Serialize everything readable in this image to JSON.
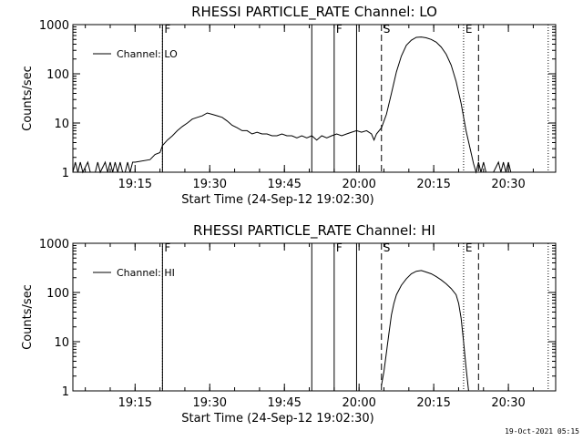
{
  "footer": "19-Oct-2021 05:15",
  "chart_data": [
    {
      "type": "line",
      "title": "RHESSI PARTICLE_RATE Channel: LO",
      "xlabel": "Start Time (24-Sep-12 19:02:30)",
      "ylabel": "Counts/sec",
      "yscale": "log",
      "ylim": [
        1,
        1000
      ],
      "xlim": [
        "19:02:30",
        "20:39:30"
      ],
      "x_ticks": [
        "19:15",
        "19:30",
        "19:45",
        "20:00",
        "20:15",
        "20:30"
      ],
      "y_ticks": [
        "1",
        "10",
        "100",
        "1000"
      ],
      "legend": {
        "position": "top-left",
        "entries": [
          "Channel: LO"
        ]
      },
      "markers": [
        {
          "time": "19:20:30",
          "label": "F",
          "style": "dotted"
        },
        {
          "time": "19:20:30",
          "label": "",
          "style": "solid"
        },
        {
          "time": "19:50:30",
          "label": "",
          "style": "solid"
        },
        {
          "time": "19:55:00",
          "label": "F",
          "style": "solid"
        },
        {
          "time": "19:59:30",
          "label": "",
          "style": "solid"
        },
        {
          "time": "20:04:30",
          "label": "S",
          "style": "dashed"
        },
        {
          "time": "20:21:00",
          "label": "E",
          "style": "dotted"
        },
        {
          "time": "20:24:00",
          "label": "",
          "style": "dashed"
        },
        {
          "time": "20:38:00",
          "label": "",
          "style": "dotted"
        }
      ],
      "series": [
        {
          "name": "Channel: LO",
          "points": [
            [
              "19:02:30",
              1
            ],
            [
              "19:03:00",
              1.6
            ],
            [
              "19:03:30",
              1
            ],
            [
              "19:04:00",
              1.6
            ],
            [
              "19:04:30",
              1
            ],
            [
              "19:05:30",
              1.6
            ],
            [
              "19:06:00",
              1
            ],
            [
              "19:07:00",
              1
            ],
            [
              "19:07:30",
              1.6
            ],
            [
              "19:08:00",
              1
            ],
            [
              "19:09:00",
              1.6
            ],
            [
              "19:09:30",
              1
            ],
            [
              "19:10:00",
              1.6
            ],
            [
              "19:10:30",
              1
            ],
            [
              "19:11:00",
              1.6
            ],
            [
              "19:11:30",
              1
            ],
            [
              "19:12:00",
              1.6
            ],
            [
              "19:12:30",
              1
            ],
            [
              "19:13:00",
              1
            ],
            [
              "19:13:30",
              1.6
            ],
            [
              "19:14:00",
              1
            ],
            [
              "19:14:30",
              1.6
            ],
            [
              "19:15:00",
              1.6
            ],
            [
              "19:18:00",
              1.8
            ],
            [
              "19:19:00",
              2.3
            ],
            [
              "19:20:00",
              2.5
            ],
            [
              "19:20:30",
              3.5
            ],
            [
              "19:21:30",
              4.5
            ],
            [
              "19:22:30",
              5.5
            ],
            [
              "19:23:30",
              7
            ],
            [
              "19:24:30",
              8.5
            ],
            [
              "19:25:30",
              10
            ],
            [
              "19:26:30",
              12
            ],
            [
              "19:27:30",
              13
            ],
            [
              "19:28:30",
              14
            ],
            [
              "19:29:30",
              16
            ],
            [
              "19:30:30",
              15
            ],
            [
              "19:31:30",
              14
            ],
            [
              "19:32:30",
              13
            ],
            [
              "19:33:30",
              11
            ],
            [
              "19:34:30",
              9
            ],
            [
              "19:35:30",
              8
            ],
            [
              "19:36:30",
              7
            ],
            [
              "19:37:30",
              7
            ],
            [
              "19:38:30",
              6
            ],
            [
              "19:39:30",
              6.5
            ],
            [
              "19:40:30",
              6
            ],
            [
              "19:41:30",
              6
            ],
            [
              "19:42:30",
              5.5
            ],
            [
              "19:43:30",
              5.5
            ],
            [
              "19:44:30",
              6
            ],
            [
              "19:45:30",
              5.5
            ],
            [
              "19:46:30",
              5.5
            ],
            [
              "19:47:30",
              5
            ],
            [
              "19:48:30",
              5.5
            ],
            [
              "19:49:30",
              5
            ],
            [
              "19:50:30",
              5.5
            ],
            [
              "19:51:30",
              4.5
            ],
            [
              "19:52:30",
              5.5
            ],
            [
              "19:53:30",
              5
            ],
            [
              "19:54:30",
              5.5
            ],
            [
              "19:55:30",
              6
            ],
            [
              "19:56:30",
              5.5
            ],
            [
              "19:57:30",
              6
            ],
            [
              "19:58:30",
              6.5
            ],
            [
              "19:59:30",
              7
            ],
            [
              "20:00:30",
              6.5
            ],
            [
              "20:01:30",
              7
            ],
            [
              "20:02:30",
              6
            ],
            [
              "20:03:00",
              4.5
            ],
            [
              "20:03:30",
              6
            ],
            [
              "20:04:30",
              8
            ],
            [
              "20:05:30",
              15
            ],
            [
              "20:06:30",
              40
            ],
            [
              "20:07:30",
              110
            ],
            [
              "20:08:30",
              230
            ],
            [
              "20:09:30",
              380
            ],
            [
              "20:10:30",
              480
            ],
            [
              "20:11:30",
              550
            ],
            [
              "20:12:30",
              560
            ],
            [
              "20:13:30",
              540
            ],
            [
              "20:14:30",
              500
            ],
            [
              "20:15:30",
              440
            ],
            [
              "20:16:30",
              350
            ],
            [
              "20:17:30",
              250
            ],
            [
              "20:18:30",
              150
            ],
            [
              "20:19:30",
              70
            ],
            [
              "20:20:30",
              25
            ],
            [
              "20:21:30",
              7
            ],
            [
              "20:22:30",
              2.5
            ],
            [
              "20:23:00",
              1.5
            ],
            [
              "20:23:30",
              1
            ],
            [
              "20:24:00",
              1.6
            ],
            [
              "20:24:30",
              1
            ],
            [
              "20:25:00",
              1.6
            ],
            [
              "20:25:30",
              1
            ],
            [
              "20:27:00",
              1
            ],
            [
              "20:28:00",
              1.6
            ],
            [
              "20:28:30",
              1
            ],
            [
              "20:29:00",
              1.6
            ],
            [
              "20:29:30",
              1
            ],
            [
              "20:30:00",
              1.6
            ],
            [
              "20:30:30",
              1
            ]
          ]
        }
      ]
    },
    {
      "type": "line",
      "title": "RHESSI PARTICLE_RATE Channel: HI",
      "xlabel": "Start Time (24-Sep-12 19:02:30)",
      "ylabel": "Counts/sec",
      "yscale": "log",
      "ylim": [
        1,
        1000
      ],
      "xlim": [
        "19:02:30",
        "20:39:30"
      ],
      "x_ticks": [
        "19:15",
        "19:30",
        "19:45",
        "20:00",
        "20:15",
        "20:30"
      ],
      "y_ticks": [
        "1",
        "10",
        "100",
        "1000"
      ],
      "legend": {
        "position": "top-left",
        "entries": [
          "Channel: HI"
        ]
      },
      "markers": [
        {
          "time": "19:20:30",
          "label": "F",
          "style": "dotted"
        },
        {
          "time": "19:20:30",
          "label": "",
          "style": "solid"
        },
        {
          "time": "19:50:30",
          "label": "",
          "style": "solid"
        },
        {
          "time": "19:55:00",
          "label": "F",
          "style": "solid"
        },
        {
          "time": "19:59:30",
          "label": "",
          "style": "solid"
        },
        {
          "time": "20:04:30",
          "label": "S",
          "style": "dashed"
        },
        {
          "time": "20:21:00",
          "label": "E",
          "style": "dotted"
        },
        {
          "time": "20:24:00",
          "label": "",
          "style": "dashed"
        },
        {
          "time": "20:38:00",
          "label": "",
          "style": "dotted"
        }
      ],
      "series": [
        {
          "name": "Channel: HI",
          "points": [
            [
              "20:04:30",
              1.3
            ],
            [
              "20:05:00",
              2.5
            ],
            [
              "20:05:30",
              6
            ],
            [
              "20:06:00",
              15
            ],
            [
              "20:06:30",
              35
            ],
            [
              "20:07:00",
              60
            ],
            [
              "20:07:30",
              90
            ],
            [
              "20:08:30",
              140
            ],
            [
              "20:09:30",
              190
            ],
            [
              "20:10:30",
              240
            ],
            [
              "20:11:30",
              270
            ],
            [
              "20:12:30",
              280
            ],
            [
              "20:13:30",
              260
            ],
            [
              "20:14:30",
              240
            ],
            [
              "20:15:30",
              210
            ],
            [
              "20:16:30",
              180
            ],
            [
              "20:17:30",
              150
            ],
            [
              "20:18:30",
              120
            ],
            [
              "20:19:30",
              90
            ],
            [
              "20:20:00",
              60
            ],
            [
              "20:20:30",
              30
            ],
            [
              "20:21:00",
              10
            ],
            [
              "20:21:30",
              3
            ],
            [
              "20:22:00",
              1
            ]
          ]
        }
      ]
    }
  ]
}
